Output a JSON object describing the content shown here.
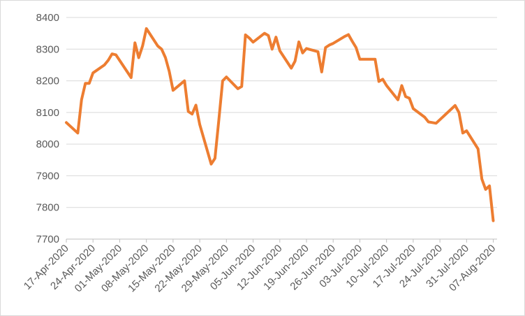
{
  "chart_data": {
    "type": "line",
    "title": "",
    "xlabel": "",
    "ylabel": "",
    "ylim": [
      7700,
      8400
    ],
    "yticks": [
      7700,
      7800,
      7900,
      8000,
      8100,
      8200,
      8300,
      8400
    ],
    "xlim": [
      "2020-04-17",
      "2020-08-08"
    ],
    "xticks": [
      "17-Apr-2020",
      "24-Apr-2020",
      "01-May-2020",
      "08-May-2020",
      "15-May-2020",
      "22-May-2020",
      "29-May-2020",
      "05-Jun-2020",
      "12-Jun-2020",
      "19-Jun-2020",
      "26-Jun-2020",
      "03-Jul-2020",
      "10-Jul-2020",
      "17-Jul-2020",
      "24-Jul-2020",
      "31-Jul-2020",
      "07-Aug-2020"
    ],
    "grid": true,
    "legend": "none",
    "series": [
      {
        "color": "#ED7D31",
        "points": [
          [
            "2020-04-17",
            8068
          ],
          [
            "2020-04-20",
            8035
          ],
          [
            "2020-04-21",
            8140
          ],
          [
            "2020-04-22",
            8192
          ],
          [
            "2020-04-23",
            8192
          ],
          [
            "2020-04-24",
            8225
          ],
          [
            "2020-04-27",
            8250
          ],
          [
            "2020-04-28",
            8265
          ],
          [
            "2020-04-29",
            8285
          ],
          [
            "2020-04-30",
            8282
          ],
          [
            "2020-05-04",
            8210
          ],
          [
            "2020-05-05",
            8320
          ],
          [
            "2020-05-06",
            8273
          ],
          [
            "2020-05-07",
            8310
          ],
          [
            "2020-05-08",
            8365
          ],
          [
            "2020-05-11",
            8310
          ],
          [
            "2020-05-12",
            8300
          ],
          [
            "2020-05-13",
            8273
          ],
          [
            "2020-05-14",
            8230
          ],
          [
            "2020-05-15",
            8170
          ],
          [
            "2020-05-18",
            8200
          ],
          [
            "2020-05-19",
            8103
          ],
          [
            "2020-05-20",
            8095
          ],
          [
            "2020-05-21",
            8123
          ],
          [
            "2020-05-22",
            8062
          ],
          [
            "2020-05-25",
            7937
          ],
          [
            "2020-05-26",
            7955
          ],
          [
            "2020-05-27",
            8075
          ],
          [
            "2020-05-28",
            8200
          ],
          [
            "2020-05-29",
            8212
          ],
          [
            "2020-06-01",
            8175
          ],
          [
            "2020-06-02",
            8182
          ],
          [
            "2020-06-03",
            8345
          ],
          [
            "2020-06-04",
            8335
          ],
          [
            "2020-06-05",
            8322
          ],
          [
            "2020-06-08",
            8350
          ],
          [
            "2020-06-09",
            8343
          ],
          [
            "2020-06-10",
            8300
          ],
          [
            "2020-06-11",
            8338
          ],
          [
            "2020-06-12",
            8295
          ],
          [
            "2020-06-15",
            8240
          ],
          [
            "2020-06-16",
            8262
          ],
          [
            "2020-06-17",
            8323
          ],
          [
            "2020-06-18",
            8288
          ],
          [
            "2020-06-19",
            8302
          ],
          [
            "2020-06-22",
            8292
          ],
          [
            "2020-06-23",
            8228
          ],
          [
            "2020-06-24",
            8305
          ],
          [
            "2020-06-25",
            8313
          ],
          [
            "2020-06-26",
            8318
          ],
          [
            "2020-06-29",
            8340
          ],
          [
            "2020-06-30",
            8346
          ],
          [
            "2020-07-01",
            8325
          ],
          [
            "2020-07-02",
            8305
          ],
          [
            "2020-07-03",
            8268
          ],
          [
            "2020-07-06",
            8268
          ],
          [
            "2020-07-07",
            8268
          ],
          [
            "2020-07-08",
            8198
          ],
          [
            "2020-07-09",
            8205
          ],
          [
            "2020-07-10",
            8185
          ],
          [
            "2020-07-13",
            8140
          ],
          [
            "2020-07-14",
            8185
          ],
          [
            "2020-07-15",
            8150
          ],
          [
            "2020-07-16",
            8145
          ],
          [
            "2020-07-17",
            8112
          ],
          [
            "2020-07-20",
            8085
          ],
          [
            "2020-07-21",
            8070
          ],
          [
            "2020-07-22",
            8068
          ],
          [
            "2020-07-23",
            8066
          ],
          [
            "2020-07-28",
            8122
          ],
          [
            "2020-07-29",
            8100
          ],
          [
            "2020-07-30",
            8035
          ],
          [
            "2020-07-31",
            8042
          ],
          [
            "2020-08-03",
            7985
          ],
          [
            "2020-08-04",
            7890
          ],
          [
            "2020-08-05",
            7857
          ],
          [
            "2020-08-06",
            7868
          ],
          [
            "2020-08-07",
            7758
          ]
        ]
      }
    ]
  }
}
